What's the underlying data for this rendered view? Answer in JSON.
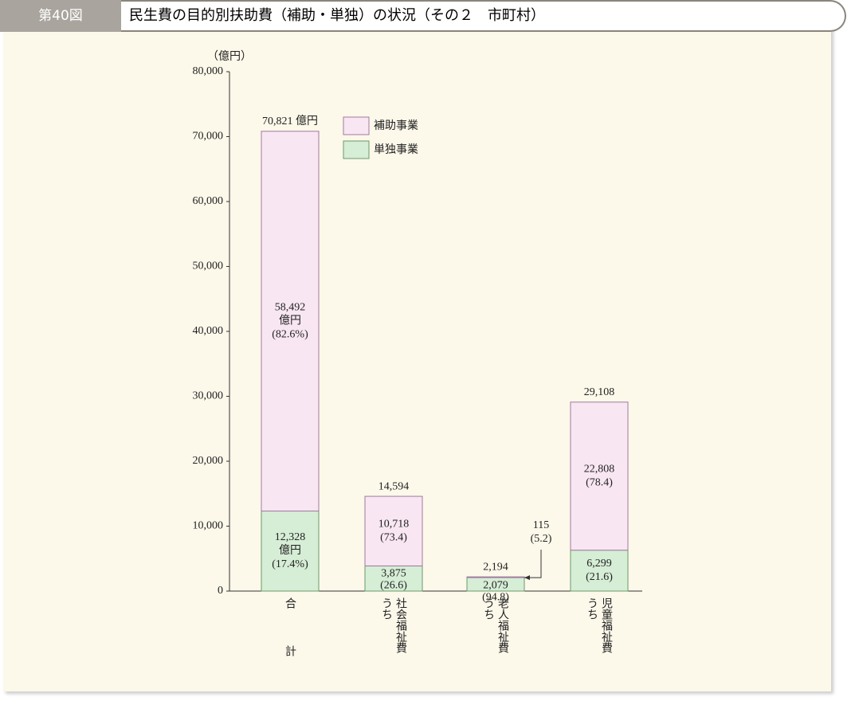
{
  "header": {
    "number": "第40図",
    "title": "民生費の目的別扶助費（補助・単独）の状況（その２　市町村）"
  },
  "chart_data": {
    "type": "stacked_bar",
    "y_unit": "（億円）",
    "categories": [
      "合計",
      "うち\n社会福祉費",
      "うち\n老人福祉費",
      "うち\n児童福祉費"
    ],
    "series": [
      {
        "name": "補助事業",
        "color": "#f8e6f2",
        "edge": "#a07aa0",
        "values": [
          58492,
          10718,
          115,
          22808
        ],
        "value_labels": [
          "58,492",
          "10,718",
          "115",
          "22,808"
        ],
        "share_labels": [
          "(82.6%)",
          "(73.4)",
          "(5.2)",
          "(78.4)"
        ]
      },
      {
        "name": "単独事業",
        "color": "#d6edd6",
        "edge": "#6a9a6a",
        "values": [
          12328,
          3875,
          2079,
          6299
        ],
        "value_labels": [
          "12,328",
          "3,875",
          "2,079",
          "6,299"
        ],
        "share_labels": [
          "(17.4%)",
          "(26.6)",
          "(94.8)",
          "(21.6)"
        ]
      }
    ],
    "unit_in_bar": "億円",
    "totals": [
      70821,
      14594,
      2194,
      29108
    ],
    "total_labels": [
      "70,821 億円",
      "14,594",
      "2,194",
      "29,108"
    ],
    "ylim": [
      0,
      80000
    ],
    "yticks": [
      0,
      {
        "value": 10000,
        "label": "10,000"
      },
      {
        "value": 20000,
        "label": "20,000"
      },
      {
        "value": 30000,
        "label": "30,000"
      },
      {
        "value": 40000,
        "label": "40,000"
      },
      {
        "value": 50000,
        "label": "50,000"
      },
      {
        "value": 60000,
        "label": "60,000"
      },
      {
        "value": 70000,
        "label": "70,000"
      },
      {
        "value": 80000,
        "label": "80,000"
      }
    ]
  }
}
